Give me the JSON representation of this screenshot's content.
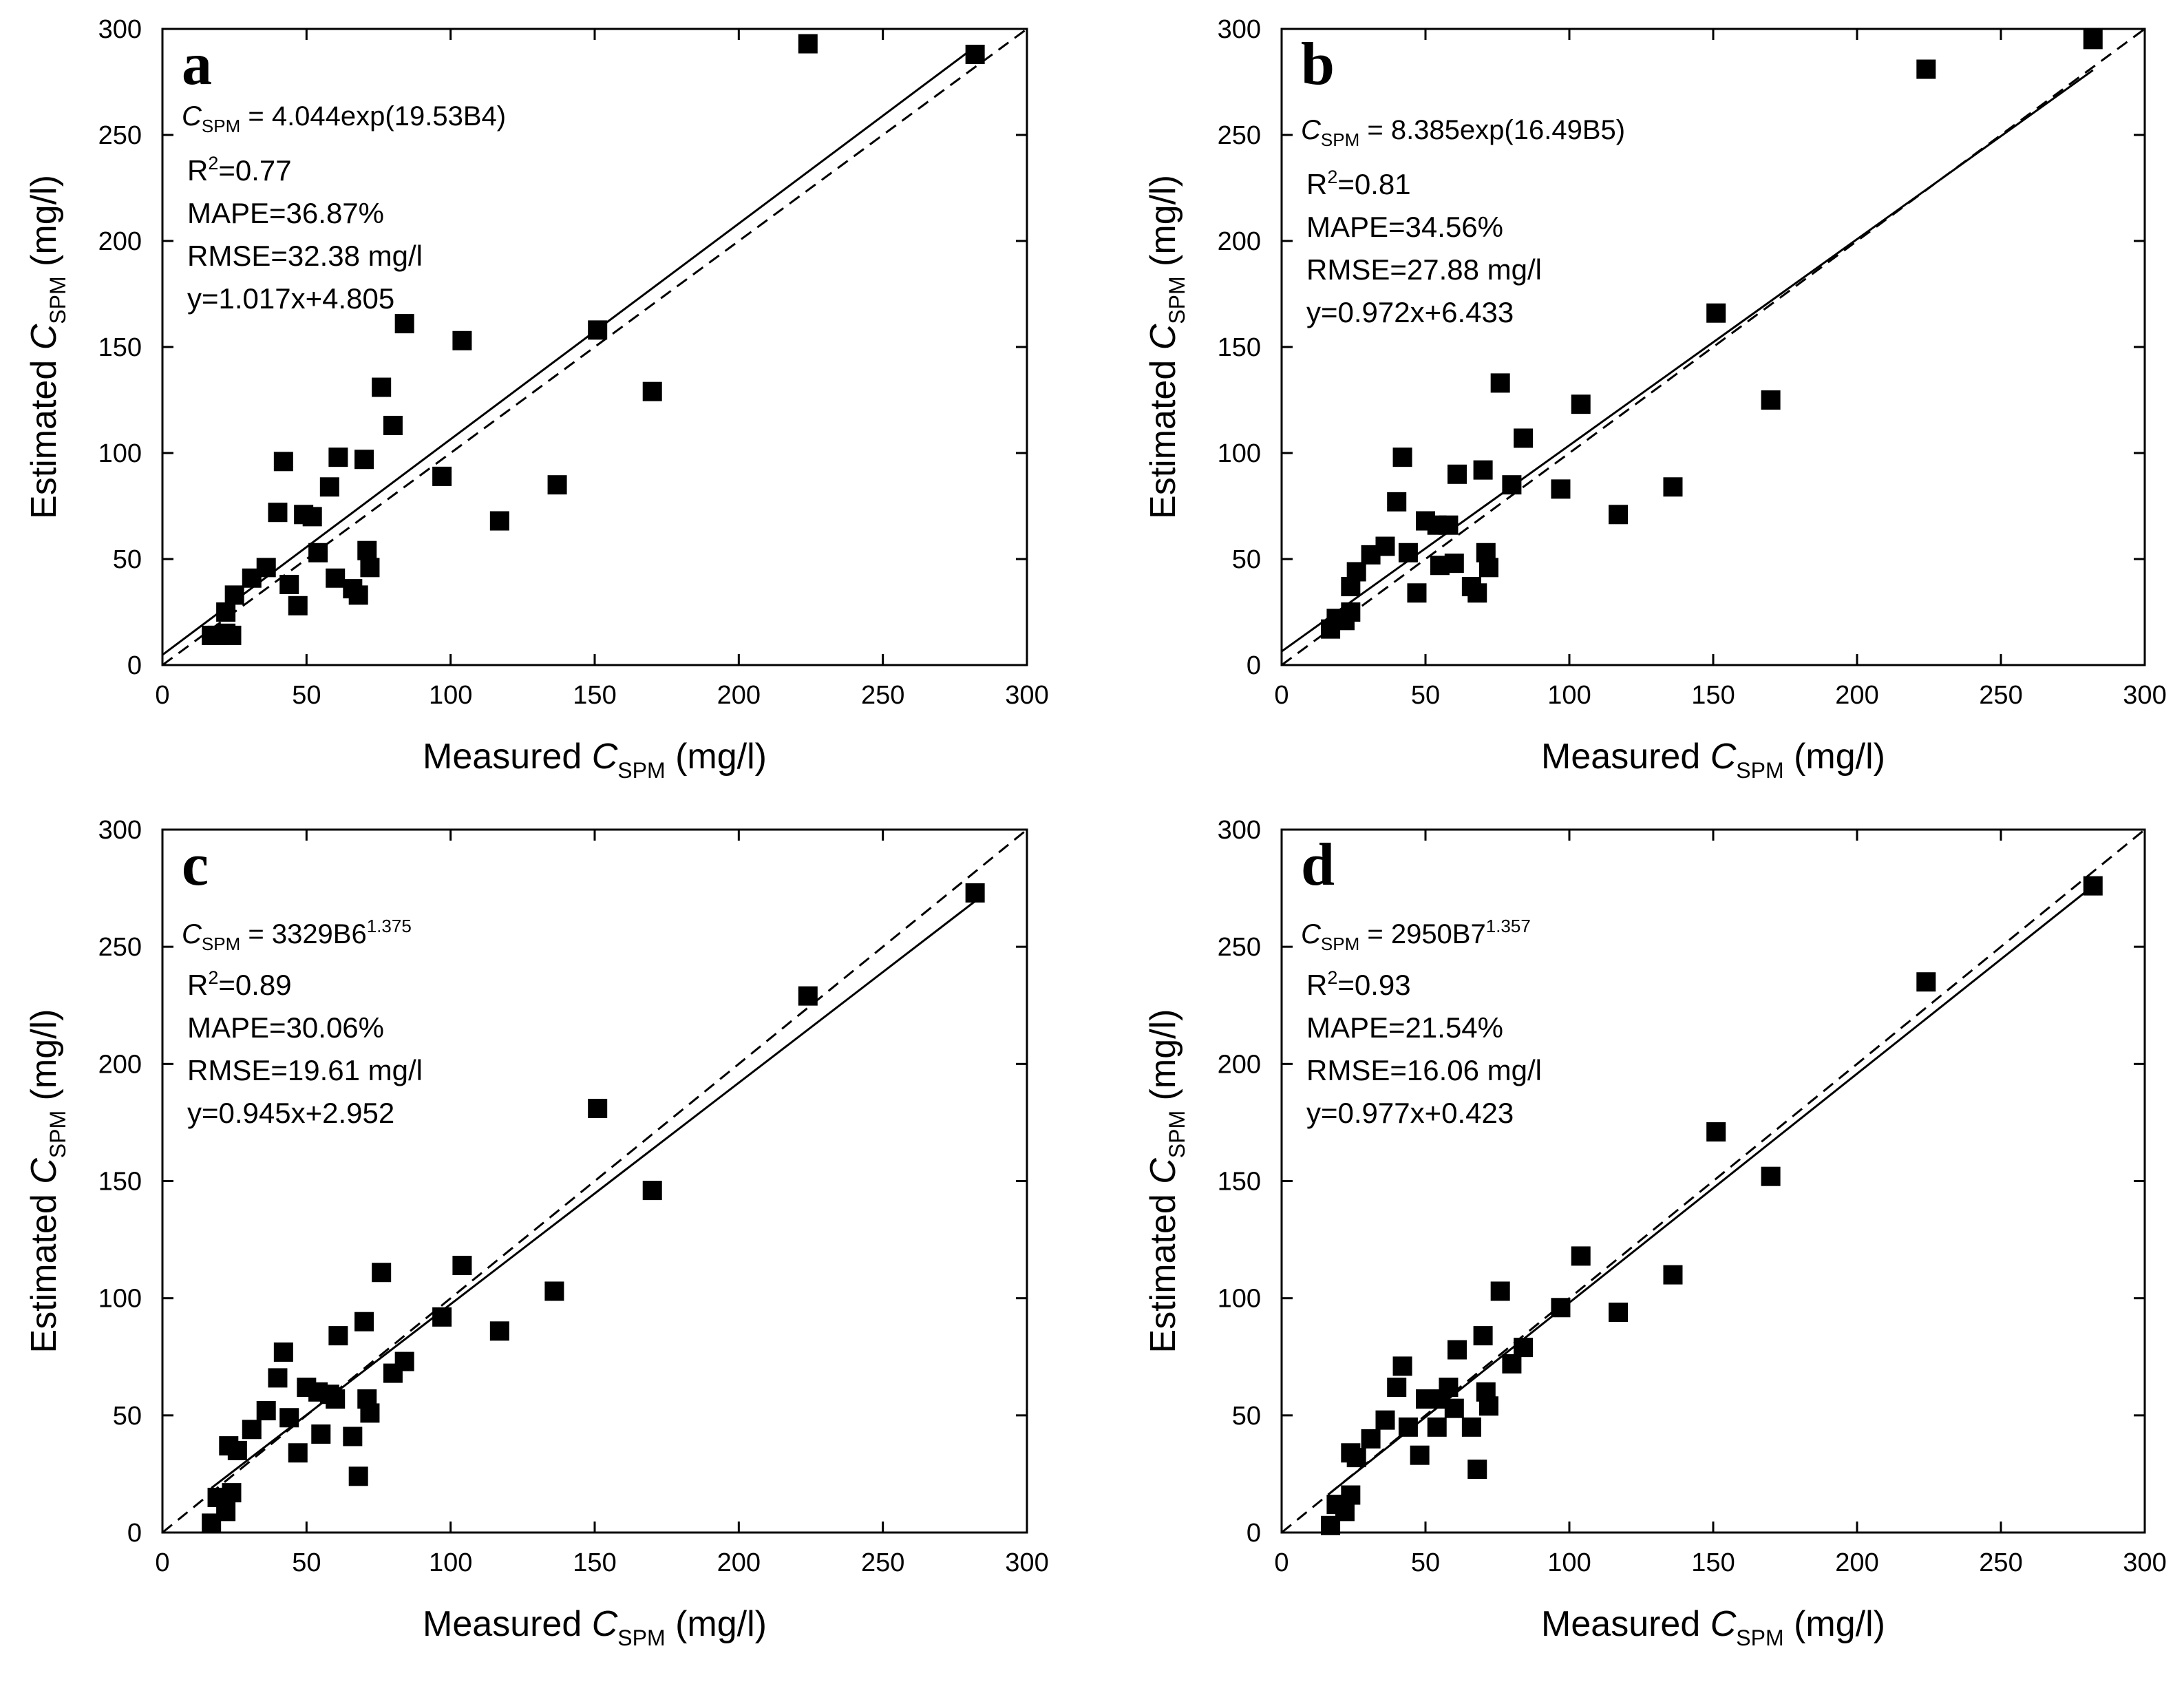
{
  "chart_data": [
    {
      "type": "scatter",
      "panel_label": "a",
      "xlabel": {
        "main": "Measured ",
        "ital": "C",
        "sub": "SPM",
        "unit": " (mg/l)"
      },
      "ylabel": {
        "main": "Estimated ",
        "ital": "C",
        "sub": "SPM",
        "unit": " (mg/l)"
      },
      "xlim": [
        0,
        300
      ],
      "ylim": [
        0,
        300
      ],
      "xticks": [
        0,
        50,
        100,
        150,
        200,
        250,
        300
      ],
      "yticks": [
        0,
        50,
        100,
        150,
        200,
        250,
        300
      ],
      "formula": {
        "c": "C",
        "sub": "SPM",
        "rhs": " = 4.044exp(19.53B4)",
        "sup": ""
      },
      "stats": {
        "r2_prefix": "R",
        "r2_sup": "2",
        "r2_value": "=0.77",
        "mape": "MAPE=36.87%",
        "rmse": "RMSE=32.38 mg/l",
        "fit": "y=1.017x+4.805"
      },
      "fit_line": {
        "slope": 1.017,
        "intercept": 4.805,
        "x_range": [
          0,
          282
        ]
      },
      "one_to_one": [
        0,
        300
      ],
      "points": [
        [
          17,
          14
        ],
        [
          19,
          14
        ],
        [
          22,
          15
        ],
        [
          24,
          14
        ],
        [
          22,
          25
        ],
        [
          25,
          33
        ],
        [
          31,
          41
        ],
        [
          36,
          46
        ],
        [
          40,
          72
        ],
        [
          42,
          96
        ],
        [
          44,
          38
        ],
        [
          47,
          28
        ],
        [
          49,
          71
        ],
        [
          52,
          70
        ],
        [
          54,
          53
        ],
        [
          58,
          84
        ],
        [
          60,
          41
        ],
        [
          61,
          98
        ],
        [
          66,
          36
        ],
        [
          68,
          33
        ],
        [
          70,
          97
        ],
        [
          71,
          54
        ],
        [
          72,
          46
        ],
        [
          76,
          131
        ],
        [
          80,
          113
        ],
        [
          84,
          161
        ],
        [
          97,
          89
        ],
        [
          104,
          153
        ],
        [
          117,
          68
        ],
        [
          137,
          85
        ],
        [
          151,
          158
        ],
        [
          170,
          129
        ],
        [
          224,
          293
        ],
        [
          282,
          288
        ]
      ]
    },
    {
      "type": "scatter",
      "panel_label": "b",
      "xlabel": {
        "main": "Measured ",
        "ital": "C",
        "sub": "SPM",
        "unit": " (mg/l)"
      },
      "ylabel": {
        "main": "Estimated ",
        "ital": "C",
        "sub": "SPM",
        "unit": " (mg/l)"
      },
      "xlim": [
        0,
        300
      ],
      "ylim": [
        0,
        300
      ],
      "xticks": [
        0,
        50,
        100,
        150,
        200,
        250,
        300
      ],
      "yticks": [
        0,
        50,
        100,
        150,
        200,
        250,
        300
      ],
      "formula": {
        "c": "C",
        "sub": "SPM",
        "rhs": " = 8.385exp(16.49B5)",
        "sup": ""
      },
      "stats": {
        "r2_prefix": "R",
        "r2_sup": "2",
        "r2_value": "=0.81",
        "mape": "MAPE=34.56%",
        "rmse": "RMSE=27.88 mg/l",
        "fit": "y=0.972x+6.433"
      },
      "fit_line": {
        "slope": 0.972,
        "intercept": 6.433,
        "x_range": [
          0,
          282
        ]
      },
      "one_to_one": [
        0,
        300
      ],
      "points": [
        [
          17,
          17
        ],
        [
          19,
          22
        ],
        [
          22,
          21
        ],
        [
          24,
          25
        ],
        [
          24,
          37
        ],
        [
          26,
          44
        ],
        [
          31,
          52
        ],
        [
          36,
          56
        ],
        [
          40,
          77
        ],
        [
          42,
          98
        ],
        [
          44,
          53
        ],
        [
          47,
          34
        ],
        [
          50,
          68
        ],
        [
          54,
          66
        ],
        [
          55,
          47
        ],
        [
          58,
          66
        ],
        [
          60,
          48
        ],
        [
          61,
          90
        ],
        [
          66,
          37
        ],
        [
          68,
          34
        ],
        [
          70,
          92
        ],
        [
          71,
          53
        ],
        [
          72,
          46
        ],
        [
          76,
          133
        ],
        [
          80,
          85
        ],
        [
          84,
          107
        ],
        [
          97,
          83
        ],
        [
          104,
          123
        ],
        [
          117,
          71
        ],
        [
          136,
          84
        ],
        [
          151,
          166
        ],
        [
          170,
          125
        ],
        [
          224,
          281
        ],
        [
          282,
          295
        ]
      ]
    },
    {
      "type": "scatter",
      "panel_label": "c",
      "xlabel": {
        "main": "Measured ",
        "ital": "C",
        "sub": "SPM",
        "unit": " (mg/l)"
      },
      "ylabel": {
        "main": "Estimated ",
        "ital": "C",
        "sub": "SPM",
        "unit": " (mg/l)"
      },
      "xlim": [
        0,
        300
      ],
      "ylim": [
        0,
        300
      ],
      "xticks": [
        0,
        50,
        100,
        150,
        200,
        250,
        300
      ],
      "yticks": [
        0,
        50,
        100,
        150,
        200,
        250,
        300
      ],
      "formula": {
        "c": "C",
        "sub": "SPM",
        "rhs": " = 3329B6",
        "sup": "1.375"
      },
      "stats": {
        "r2_prefix": "R",
        "r2_sup": "2",
        "r2_value": "=0.89",
        "mape": "MAPE=30.06%",
        "rmse": "RMSE=19.61 mg/l",
        "fit": "y=0.945x+2.952"
      },
      "fit_line": {
        "slope": 0.945,
        "intercept": 2.952,
        "x_range": [
          17,
          282
        ]
      },
      "one_to_one": [
        0,
        300
      ],
      "points": [
        [
          17,
          4
        ],
        [
          19,
          15
        ],
        [
          22,
          9
        ],
        [
          24,
          17
        ],
        [
          23,
          37
        ],
        [
          26,
          35
        ],
        [
          31,
          44
        ],
        [
          36,
          52
        ],
        [
          40,
          66
        ],
        [
          42,
          77
        ],
        [
          44,
          49
        ],
        [
          47,
          34
        ],
        [
          50,
          62
        ],
        [
          54,
          60
        ],
        [
          55,
          42
        ],
        [
          58,
          59
        ],
        [
          60,
          57
        ],
        [
          61,
          84
        ],
        [
          66,
          41
        ],
        [
          68,
          24
        ],
        [
          70,
          90
        ],
        [
          71,
          57
        ],
        [
          72,
          51
        ],
        [
          76,
          111
        ],
        [
          80,
          68
        ],
        [
          84,
          73
        ],
        [
          97,
          92
        ],
        [
          104,
          114
        ],
        [
          117,
          86
        ],
        [
          136,
          103
        ],
        [
          151,
          181
        ],
        [
          170,
          146
        ],
        [
          224,
          229
        ],
        [
          282,
          273
        ]
      ]
    },
    {
      "type": "scatter",
      "panel_label": "d",
      "xlabel": {
        "main": "Measured ",
        "ital": "C",
        "sub": "SPM",
        "unit": " (mg/l)"
      },
      "ylabel": {
        "main": "Estimated ",
        "ital": "C",
        "sub": "SPM",
        "unit": " (mg/l)"
      },
      "xlim": [
        0,
        300
      ],
      "ylim": [
        0,
        300
      ],
      "xticks": [
        0,
        50,
        100,
        150,
        200,
        250,
        300
      ],
      "yticks": [
        0,
        50,
        100,
        150,
        200,
        250,
        300
      ],
      "formula": {
        "c": "C",
        "sub": "SPM",
        "rhs": " = 2950B7",
        "sup": "1.357"
      },
      "stats": {
        "r2_prefix": "R",
        "r2_sup": "2",
        "r2_value": "=0.93",
        "mape": "MAPE=21.54%",
        "rmse": "RMSE=16.06 mg/l",
        "fit": "y=0.977x+0.423"
      },
      "fit_line": {
        "slope": 0.977,
        "intercept": 0.423,
        "x_range": [
          17,
          282
        ]
      },
      "one_to_one": [
        0,
        300
      ],
      "points": [
        [
          17,
          3
        ],
        [
          19,
          12
        ],
        [
          22,
          9
        ],
        [
          24,
          16
        ],
        [
          24,
          34
        ],
        [
          26,
          32
        ],
        [
          31,
          40
        ],
        [
          36,
          48
        ],
        [
          40,
          62
        ],
        [
          42,
          71
        ],
        [
          44,
          45
        ],
        [
          48,
          33
        ],
        [
          50,
          57
        ],
        [
          54,
          45
        ],
        [
          55,
          57
        ],
        [
          58,
          62
        ],
        [
          60,
          53
        ],
        [
          61,
          78
        ],
        [
          66,
          45
        ],
        [
          68,
          27
        ],
        [
          70,
          84
        ],
        [
          71,
          60
        ],
        [
          72,
          54
        ],
        [
          76,
          103
        ],
        [
          80,
          72
        ],
        [
          84,
          79
        ],
        [
          97,
          96
        ],
        [
          104,
          118
        ],
        [
          117,
          94
        ],
        [
          136,
          110
        ],
        [
          151,
          171
        ],
        [
          170,
          152
        ],
        [
          224,
          235
        ],
        [
          282,
          276
        ]
      ]
    }
  ]
}
